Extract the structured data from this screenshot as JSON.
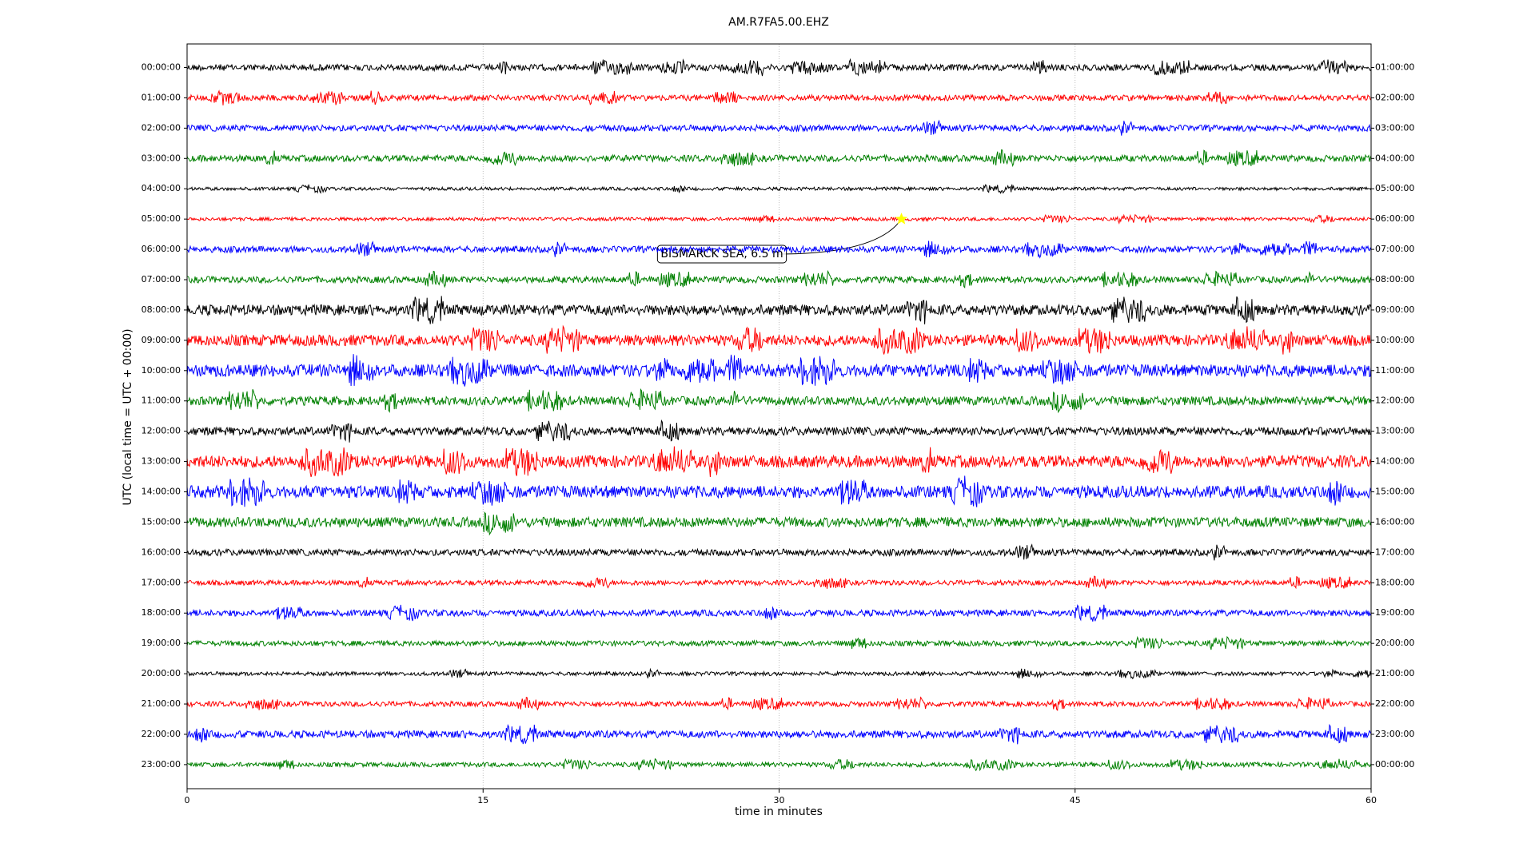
{
  "chart_data": {
    "type": "dayplot",
    "title": "AM.R7FA5.00.EHZ",
    "xlabel": "time in minutes",
    "ylabel": "UTC (local time = UTC + 00:00)",
    "xlim": [
      0,
      60
    ],
    "xticks": [
      0,
      15,
      30,
      45,
      60
    ],
    "grid": true,
    "series": [
      {
        "name": "00:00:00",
        "right_label": "01:00:00",
        "color": "#000000"
      },
      {
        "name": "01:00:00",
        "right_label": "02:00:00",
        "color": "#ff0000"
      },
      {
        "name": "02:00:00",
        "right_label": "03:00:00",
        "color": "#0000ff"
      },
      {
        "name": "03:00:00",
        "right_label": "04:00:00",
        "color": "#008000"
      },
      {
        "name": "04:00:00",
        "right_label": "05:00:00",
        "color": "#000000"
      },
      {
        "name": "05:00:00",
        "right_label": "06:00:00",
        "color": "#ff0000",
        "event": {
          "label": "BISMARCK SEA, 6.5 m",
          "x": 36.2
        }
      },
      {
        "name": "06:00:00",
        "right_label": "07:00:00",
        "color": "#0000ff"
      },
      {
        "name": "07:00:00",
        "right_label": "08:00:00",
        "color": "#008000"
      },
      {
        "name": "08:00:00",
        "right_label": "09:00:00",
        "color": "#000000"
      },
      {
        "name": "09:00:00",
        "right_label": "10:00:00",
        "color": "#ff0000"
      },
      {
        "name": "10:00:00",
        "right_label": "11:00:00",
        "color": "#0000ff"
      },
      {
        "name": "11:00:00",
        "right_label": "12:00:00",
        "color": "#008000"
      },
      {
        "name": "12:00:00",
        "right_label": "13:00:00",
        "color": "#000000"
      },
      {
        "name": "13:00:00",
        "right_label": "14:00:00",
        "color": "#ff0000"
      },
      {
        "name": "14:00:00",
        "right_label": "15:00:00",
        "color": "#0000ff"
      },
      {
        "name": "15:00:00",
        "right_label": "16:00:00",
        "color": "#008000"
      },
      {
        "name": "16:00:00",
        "right_label": "17:00:00",
        "color": "#000000"
      },
      {
        "name": "17:00:00",
        "right_label": "18:00:00",
        "color": "#ff0000"
      },
      {
        "name": "18:00:00",
        "right_label": "19:00:00",
        "color": "#0000ff"
      },
      {
        "name": "19:00:00",
        "right_label": "20:00:00",
        "color": "#008000"
      },
      {
        "name": "20:00:00",
        "right_label": "21:00:00",
        "color": "#000000"
      },
      {
        "name": "21:00:00",
        "right_label": "22:00:00",
        "color": "#ff0000"
      },
      {
        "name": "22:00:00",
        "right_label": "23:00:00",
        "color": "#0000ff"
      },
      {
        "name": "23:00:00",
        "right_label": "00:00:00",
        "color": "#008000"
      }
    ]
  }
}
